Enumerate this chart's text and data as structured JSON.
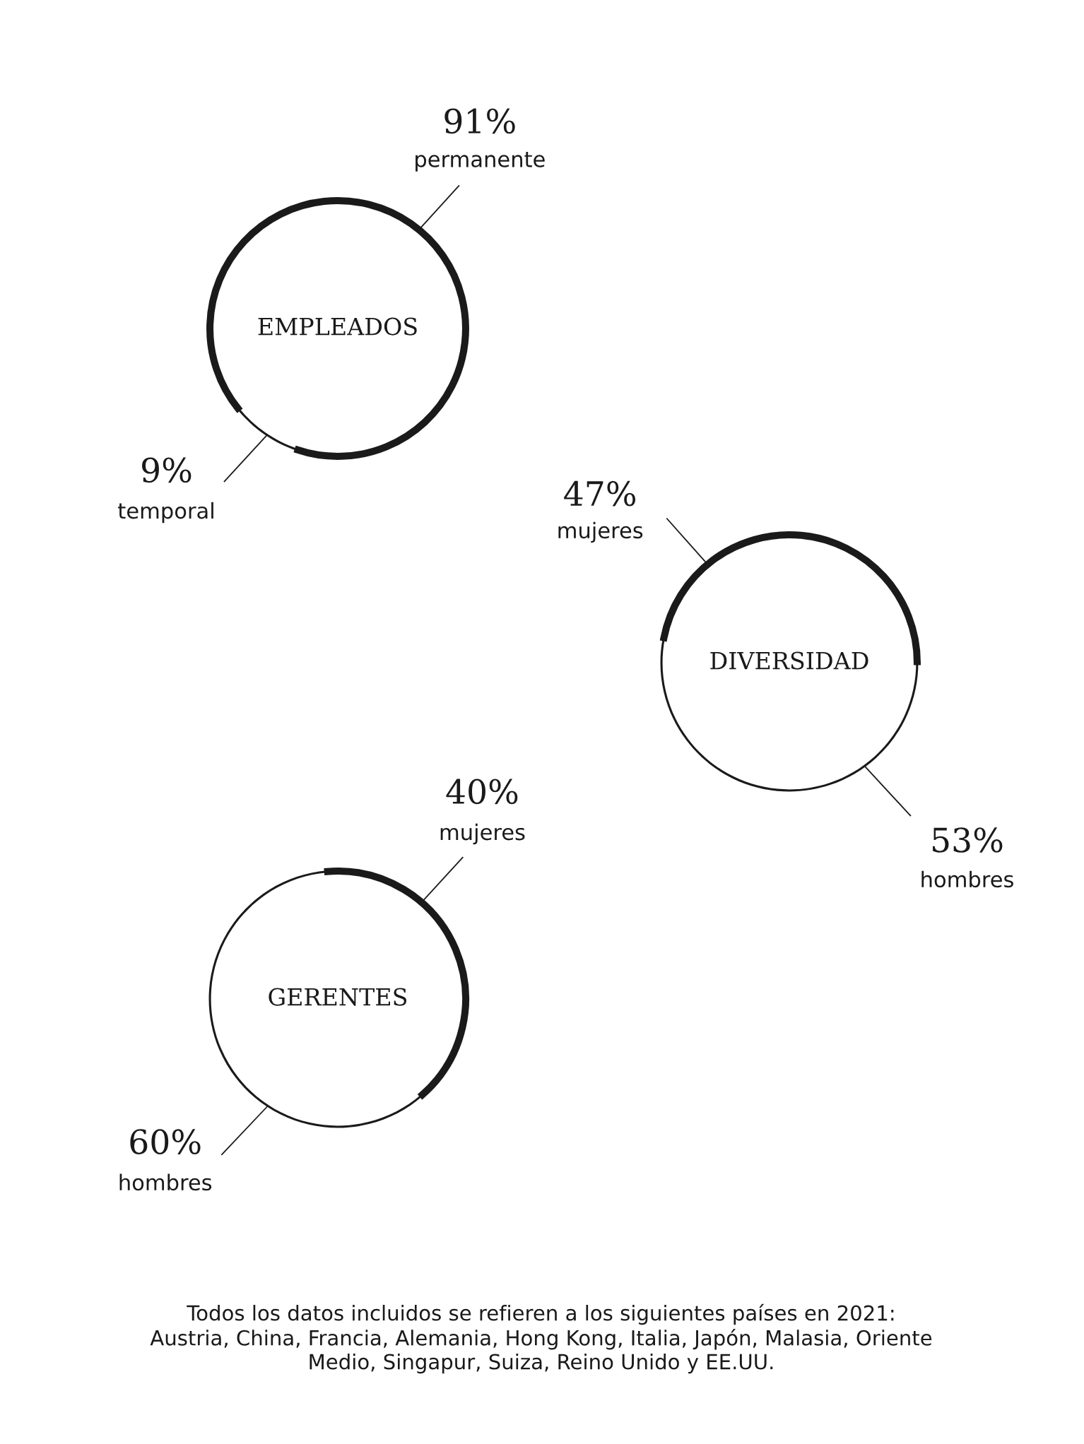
{
  "chart_data": [
    {
      "type": "donut",
      "title": "EMPLEADOS",
      "categories": [
        "permanente",
        "temporal"
      ],
      "values": [
        91,
        9
      ],
      "value_labels": [
        "91%",
        "9%"
      ],
      "colors": [
        "#1a1a1a",
        "#1a1a1a"
      ]
    },
    {
      "type": "donut",
      "title": "DIVERSIDAD",
      "categories": [
        "mujeres",
        "hombres"
      ],
      "values": [
        47,
        53
      ],
      "value_labels": [
        "47%",
        "53%"
      ],
      "colors": [
        "#1a1a1a",
        "#1a1a1a"
      ]
    },
    {
      "type": "donut",
      "title": "GERENTES",
      "categories": [
        "mujeres",
        "hombres"
      ],
      "values": [
        40,
        60
      ],
      "value_labels": [
        "40%",
        "60%"
      ],
      "colors": [
        "#1a1a1a",
        "#1a1a1a"
      ],
      "annotations": [
        "Todos los datos incluidos se refieren a los siguientes países en 2021:\nAustria, China, Francia, Alemania, Hong Kong, Italia, Japón, Malasia, Oriente\nMedio, Singapur, Suiza, Reino Unido y EE.UU."
      ]
    }
  ]
}
